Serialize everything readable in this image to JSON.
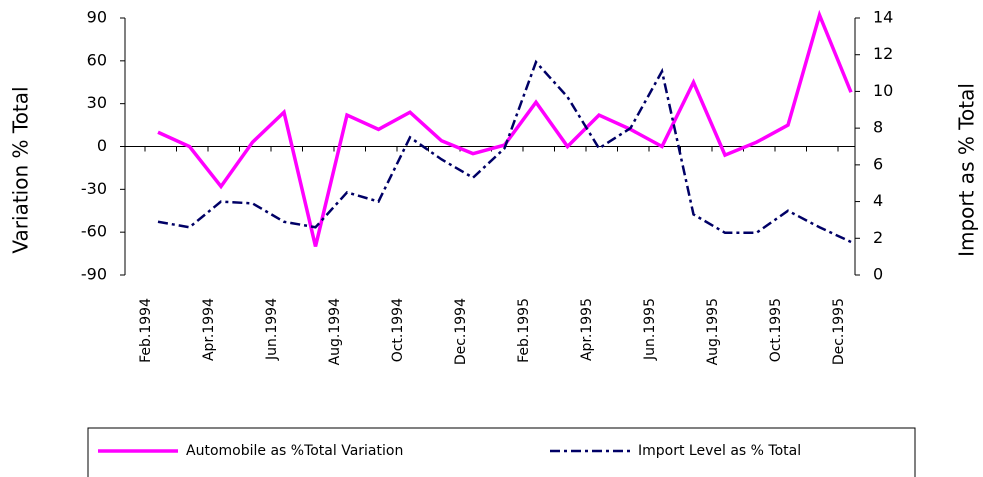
{
  "chart_data": {
    "type": "line",
    "categories": [
      "Feb.1994",
      null,
      "Apr.1994",
      null,
      "Jun.1994",
      null,
      "Aug.1994",
      null,
      "Oct.1994",
      null,
      "Dec.1994",
      null,
      "Feb.1995",
      null,
      "Apr.1995",
      null,
      "Jun.1995",
      null,
      "Aug.1995",
      null,
      "Oct.1995",
      null,
      "Dec.1995"
    ],
    "y_label": "Variation % Total",
    "y2_label": "Import as % Total",
    "ylim": [
      -90,
      90
    ],
    "yticks": [
      -90,
      -60,
      -30,
      0,
      30,
      60,
      90
    ],
    "y2lim": [
      0,
      14
    ],
    "y2ticks": [
      0,
      2,
      4,
      6,
      8,
      10,
      12,
      14
    ],
    "series": [
      {
        "name": "Automobile as %Total Variation",
        "color": "#ff00ff",
        "dash": "solid",
        "values": [
          10,
          0,
          -28,
          3,
          24,
          -70,
          22,
          12,
          24,
          4,
          -5,
          1,
          31,
          0,
          22,
          12,
          0,
          45,
          -6,
          3,
          15,
          92,
          38
        ]
      },
      {
        "name": "Import Level as % Total",
        "color": "#000066",
        "dash": "dashdot",
        "axis": "y2",
        "values": [
          2.9,
          2.6,
          4.0,
          3.9,
          2.9,
          2.6,
          4.5,
          4.0,
          7.5,
          6.3,
          5.3,
          6.9,
          11.6,
          9.7,
          6.9,
          8.0,
          11.1,
          3.3,
          2.3,
          2.3,
          3.5,
          2.6,
          1.8
        ]
      }
    ]
  }
}
